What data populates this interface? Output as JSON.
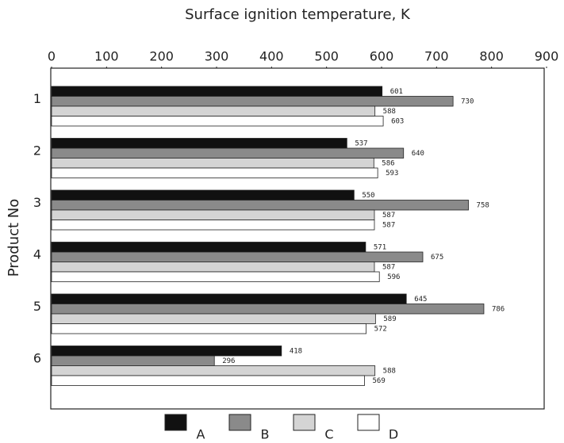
{
  "chart_data": {
    "type": "bar",
    "orientation": "horizontal",
    "title": "Surface ignition temperature, K",
    "y_label": "Product No",
    "categories": [
      "1",
      "2",
      "3",
      "4",
      "5",
      "6"
    ],
    "series": [
      {
        "name": "A",
        "color": "#111111",
        "values": [
          601,
          537,
          550,
          571,
          645,
          418
        ]
      },
      {
        "name": "B",
        "color": "#8a8a8a",
        "values": [
          730,
          640,
          758,
          675,
          786,
          296
        ]
      },
      {
        "name": "C",
        "color": "#d4d4d4",
        "values": [
          588,
          586,
          587,
          587,
          589,
          588
        ]
      },
      {
        "name": "D",
        "color": "#ffffff",
        "values": [
          603,
          593,
          587,
          596,
          572,
          569
        ]
      }
    ],
    "xlim": [
      0,
      900
    ],
    "xticks": [
      0,
      100,
      200,
      300,
      400,
      500,
      600,
      700,
      800,
      900
    ],
    "data_labels": true
  }
}
